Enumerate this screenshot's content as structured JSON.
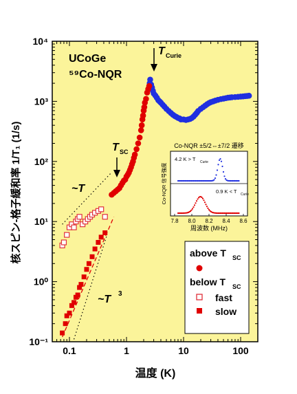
{
  "chart_data": {
    "type": "scatter",
    "xscale": "log",
    "yscale": "log",
    "xlim": [
      0.05,
      200
    ],
    "ylim": [
      0.1,
      10000
    ],
    "xlabel": "温度 (K)",
    "ylabel": "核スピン-格子緩和率 1/T₁ (1/s)",
    "x_ticks": [
      "0.1",
      "1",
      "10",
      "100"
    ],
    "y_ticks": [
      "10⁻¹",
      "10⁰",
      "10¹",
      "10²",
      "10³",
      "10⁴"
    ],
    "background_color": "#fbf49a",
    "sample_label_1": "UCoGe",
    "sample_label_2": "⁵⁹Co-NQR",
    "annotations": {
      "t_curie": "T",
      "t_curie_sub": "Curie",
      "t_sc": "T",
      "t_sc_sub": "SC",
      "law_t": "~T",
      "law_t3": "~T",
      "law_t3_exp": "3"
    },
    "legend": {
      "above_title": "above T",
      "above_sub": "SC",
      "below_title": "below T",
      "below_sub": "SC",
      "fast": "fast",
      "slow": "slow"
    },
    "series": [
      {
        "name": "blue",
        "color": "#1f2fe0",
        "marker": "circle",
        "x": [
          2.55,
          2.6,
          2.7,
          2.8,
          2.9,
          3.0,
          3.2,
          3.4,
          3.6,
          3.8,
          4.0,
          4.3,
          4.6,
          5.0,
          5.5,
          6.0,
          6.5,
          7.0,
          7.5,
          8.0,
          8.5,
          9.0,
          10,
          11,
          12,
          13,
          14,
          15,
          16,
          17,
          18,
          20,
          22,
          24,
          26,
          28,
          30,
          33,
          36,
          40,
          45,
          50,
          55,
          60,
          65,
          70,
          80,
          90,
          100,
          110,
          120,
          130,
          140
        ],
        "y": [
          2000,
          2300,
          1900,
          1700,
          1500,
          1350,
          1250,
          1150,
          1050,
          1000,
          950,
          880,
          820,
          750,
          690,
          640,
          600,
          570,
          550,
          530,
          520,
          500,
          500,
          490,
          500,
          510,
          530,
          560,
          600,
          640,
          690,
          750,
          800,
          850,
          900,
          940,
          970,
          1000,
          1030,
          1060,
          1090,
          1110,
          1130,
          1150,
          1160,
          1170,
          1180,
          1190,
          1200,
          1210,
          1220,
          1230,
          1240
        ]
      },
      {
        "name": "red_above",
        "color": "#e00000",
        "marker": "circle",
        "x": [
          0.55,
          0.6,
          0.65,
          0.7,
          0.75,
          0.8,
          0.85,
          0.9,
          0.95,
          1.0,
          1.05,
          1.1,
          1.15,
          1.2,
          1.25,
          1.3,
          1.35,
          1.4,
          1.5,
          1.6,
          1.7,
          1.8,
          1.85,
          1.9,
          1.95,
          2.0,
          2.05,
          2.1,
          2.2,
          2.3,
          2.4,
          2.5
        ],
        "y": [
          28,
          30,
          32,
          34,
          36,
          40,
          44,
          48,
          50,
          56,
          60,
          65,
          72,
          80,
          90,
          100,
          115,
          130,
          160,
          200,
          250,
          330,
          400,
          500,
          580,
          700,
          800,
          950,
          1100,
          1400,
          1600,
          1800
        ]
      },
      {
        "name": "fast",
        "color": "#e0303a",
        "marker": "open-square",
        "x": [
          0.075,
          0.08,
          0.09,
          0.1,
          0.11,
          0.12,
          0.13,
          0.14,
          0.15,
          0.17,
          0.19,
          0.21,
          0.23,
          0.25,
          0.28,
          0.32,
          0.36,
          0.42
        ],
        "y": [
          4,
          4.5,
          6,
          8,
          9,
          8,
          10,
          11,
          12,
          9,
          10,
          11,
          12,
          13,
          14,
          15,
          16,
          12
        ]
      },
      {
        "name": "slow",
        "color": "#e00000",
        "marker": "filled-square",
        "x": [
          0.075,
          0.085,
          0.09,
          0.1,
          0.11,
          0.12,
          0.13,
          0.14,
          0.15,
          0.16,
          0.18,
          0.2,
          0.22,
          0.25,
          0.28,
          0.32,
          0.36,
          0.42
        ],
        "y": [
          0.14,
          0.2,
          0.27,
          0.3,
          0.4,
          0.45,
          0.55,
          0.6,
          0.8,
          0.9,
          1.2,
          1.6,
          2.0,
          2.6,
          3.5,
          4.5,
          5.5,
          6.5
        ]
      }
    ],
    "inset": {
      "title": "Co-NQR ±5/2⇔±7/2 遷移",
      "xlabel": "周波数 (MHz)",
      "ylabel": "Co-NQR 信号強度",
      "x_ticks": [
        "7.8",
        "8.0",
        "8.2",
        "8.4",
        "8.6"
      ],
      "xlim": [
        7.8,
        8.6
      ],
      "top_label": "4.2 K > T",
      "top_sub": "Curie",
      "top_color": "#1f2fe0",
      "top_peak_center": 8.33,
      "top_peak_width": 0.04,
      "bottom_label": "0.9 K < T",
      "bottom_sub": "Curie",
      "bottom_color": "#e00000",
      "bottom_peak_center": 8.1,
      "bottom_peak_width": 0.08
    }
  }
}
